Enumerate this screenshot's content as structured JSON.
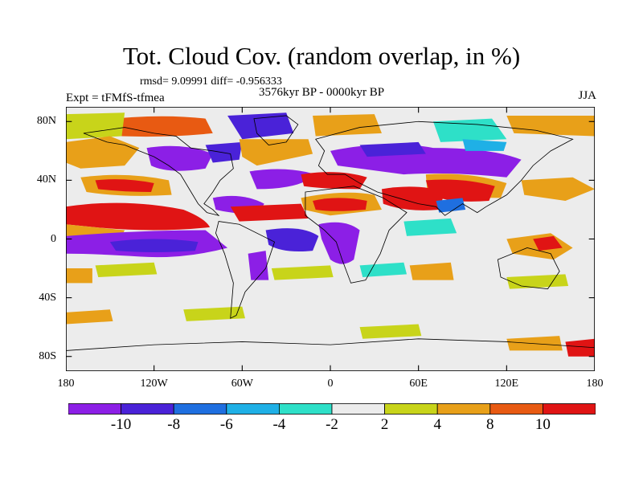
{
  "title": "Tot. Cloud Cov. (random overlap, in %)",
  "stats": "rmsd= 9.09991 diff= -0.956333",
  "experiment": "Expt = tFMfS-tfmea",
  "period": "3576kyr BP - 0000kyr BP",
  "season": "JJA",
  "map": {
    "projection": "cylindrical equidistant",
    "lon_range": [
      -180,
      180
    ],
    "lat_range": [
      -90,
      90
    ],
    "lat_ticks": [
      {
        "value": 80,
        "label": "80N"
      },
      {
        "value": 40,
        "label": "40N"
      },
      {
        "value": 0,
        "label": "0"
      },
      {
        "value": -40,
        "label": "40S"
      },
      {
        "value": -80,
        "label": "80S"
      }
    ],
    "lon_ticks": [
      {
        "value": -180,
        "label": "180"
      },
      {
        "value": -120,
        "label": "120W"
      },
      {
        "value": -60,
        "label": "60W"
      },
      {
        "value": 0,
        "label": "0"
      },
      {
        "value": 60,
        "label": "60E"
      },
      {
        "value": 120,
        "label": "120E"
      },
      {
        "value": 180,
        "label": "180"
      }
    ],
    "background_color": "#ececec"
  },
  "colorbar": {
    "bins": [
      {
        "color": "#8c1fe6"
      },
      {
        "color": "#4a22d8"
      },
      {
        "color": "#1f6fe0"
      },
      {
        "color": "#1fb0e6"
      },
      {
        "color": "#2ee0c8"
      },
      {
        "color": "#ececec"
      },
      {
        "color": "#c8d41a"
      },
      {
        "color": "#e8a019"
      },
      {
        "color": "#e85a12"
      },
      {
        "color": "#e01414"
      }
    ],
    "boundary_labels": [
      "-10",
      "-8",
      "-6",
      "-4",
      "-2",
      "2",
      "4",
      "8",
      "10"
    ]
  }
}
